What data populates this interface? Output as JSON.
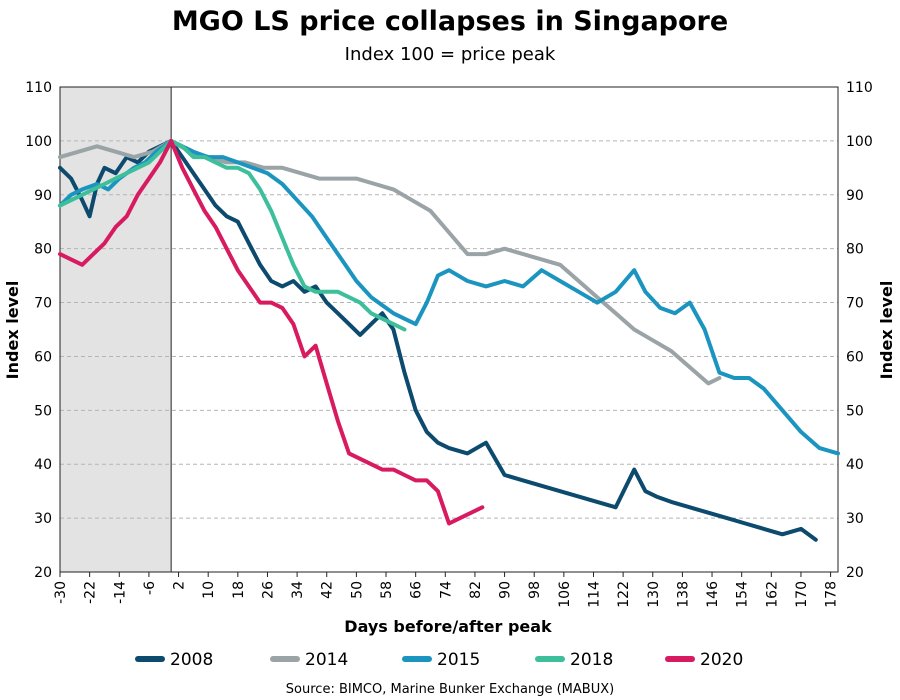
{
  "chart_data": {
    "type": "line",
    "title": "MGO LS price collapses in Singapore",
    "subtitle": "Index 100 = price peak",
    "xlabel": "Days before/after peak",
    "ylabel": "Index level",
    "ylabel_right": "Index level",
    "xlim": [
      -30,
      180
    ],
    "ylim": [
      20,
      110
    ],
    "x_ticks": [
      -30,
      -22,
      -14,
      -6,
      2,
      10,
      18,
      26,
      34,
      42,
      50,
      58,
      66,
      74,
      82,
      90,
      98,
      106,
      114,
      122,
      130,
      138,
      146,
      154,
      162,
      170,
      178
    ],
    "y_ticks": [
      20,
      30,
      40,
      50,
      60,
      70,
      80,
      90,
      100,
      110
    ],
    "shaded_region": [
      -30,
      0
    ],
    "grid": "horizontal dashed",
    "legend_position": "bottom",
    "source": "Source: BIMCO, Marine Bunker Exchange (MABUX)",
    "colors": {
      "2008": "#0c4a6e",
      "2014": "#9aa3a6",
      "2015": "#1b95c0",
      "2018": "#3dbf9b",
      "2020": "#d81b60"
    },
    "series": [
      {
        "name": "2008",
        "color": "#0c4a6e",
        "x": [
          -30,
          -27,
          -24,
          -22,
          -20,
          -18,
          -15,
          -12,
          -9,
          -6,
          -3,
          0,
          3,
          6,
          9,
          12,
          15,
          18,
          21,
          24,
          27,
          30,
          33,
          36,
          39,
          42,
          45,
          48,
          51,
          54,
          57,
          60,
          63,
          66,
          69,
          72,
          75,
          80,
          85,
          90,
          95,
          100,
          105,
          110,
          115,
          120,
          125,
          128,
          131,
          135,
          140,
          145,
          150,
          155,
          160,
          165,
          170,
          174
        ],
        "y": [
          95,
          93,
          89,
          86,
          92,
          95,
          94,
          97,
          96,
          98,
          99,
          100,
          97,
          94,
          91,
          88,
          86,
          85,
          81,
          77,
          74,
          73,
          74,
          72,
          73,
          70,
          68,
          66,
          64,
          66,
          68,
          65,
          57,
          50,
          46,
          44,
          43,
          42,
          44,
          38,
          37,
          36,
          35,
          34,
          33,
          32,
          39,
          35,
          34,
          33,
          32,
          31,
          30,
          29,
          28,
          27,
          28,
          26
        ]
      },
      {
        "name": "2014",
        "color": "#9aa3a6",
        "x": [
          -30,
          -25,
          -20,
          -15,
          -10,
          -5,
          0,
          5,
          10,
          15,
          20,
          25,
          30,
          35,
          40,
          45,
          50,
          55,
          60,
          65,
          70,
          75,
          80,
          85,
          90,
          95,
          100,
          105,
          110,
          115,
          120,
          125,
          130,
          135,
          140,
          145,
          148
        ],
        "y": [
          97,
          98,
          99,
          98,
          97,
          98,
          100,
          98,
          97,
          96,
          96,
          95,
          95,
          94,
          93,
          93,
          93,
          92,
          91,
          89,
          87,
          83,
          79,
          79,
          80,
          79,
          78,
          77,
          74,
          71,
          68,
          65,
          63,
          61,
          58,
          55,
          56
        ]
      },
      {
        "name": "2015",
        "color": "#1b95c0",
        "x": [
          -30,
          -27,
          -24,
          -20,
          -17,
          -14,
          -10,
          -7,
          -4,
          -2,
          0,
          3,
          6,
          10,
          14,
          18,
          22,
          26,
          30,
          34,
          38,
          42,
          46,
          50,
          54,
          58,
          60,
          63,
          66,
          69,
          72,
          75,
          80,
          85,
          90,
          95,
          100,
          105,
          110,
          115,
          120,
          125,
          128,
          132,
          136,
          140,
          144,
          148,
          152,
          156,
          160,
          165,
          170,
          175,
          180
        ],
        "y": [
          88,
          90,
          91,
          92,
          91,
          93,
          95,
          96,
          98,
          99,
          100,
          99,
          98,
          97,
          97,
          96,
          95,
          94,
          92,
          89,
          86,
          82,
          78,
          74,
          71,
          69,
          68,
          67,
          66,
          70,
          75,
          76,
          74,
          73,
          74,
          73,
          76,
          74,
          72,
          70,
          72,
          76,
          72,
          69,
          68,
          70,
          65,
          57,
          56,
          56,
          54,
          50,
          46,
          43,
          42
        ]
      },
      {
        "name": "2018",
        "color": "#3dbf9b",
        "x": [
          -30,
          -27,
          -24,
          -21,
          -18,
          -15,
          -12,
          -9,
          -6,
          -3,
          0,
          3,
          6,
          9,
          12,
          15,
          18,
          21,
          24,
          27,
          30,
          33,
          36,
          39,
          42,
          45,
          48,
          51,
          54,
          57,
          60,
          63
        ],
        "y": [
          88,
          89,
          90,
          91,
          92,
          93,
          94,
          95,
          96,
          98,
          100,
          99,
          97,
          97,
          96,
          95,
          95,
          94,
          91,
          87,
          82,
          77,
          73,
          72,
          72,
          72,
          71,
          70,
          68,
          67,
          66,
          65
        ]
      },
      {
        "name": "2020",
        "color": "#d81b60",
        "x": [
          -30,
          -27,
          -24,
          -21,
          -18,
          -15,
          -12,
          -9,
          -6,
          -3,
          0,
          3,
          6,
          9,
          12,
          15,
          18,
          21,
          24,
          27,
          30,
          33,
          36,
          39,
          42,
          45,
          48,
          51,
          54,
          57,
          60,
          63,
          66,
          69,
          72,
          75,
          78,
          81,
          84
        ],
        "y": [
          79,
          78,
          77,
          79,
          81,
          84,
          86,
          90,
          93,
          96,
          100,
          95,
          91,
          87,
          84,
          80,
          76,
          73,
          70,
          70,
          69,
          66,
          60,
          62,
          55,
          48,
          42,
          41,
          40,
          39,
          39,
          38,
          37,
          37,
          35,
          29,
          30,
          31,
          32
        ]
      }
    ]
  }
}
